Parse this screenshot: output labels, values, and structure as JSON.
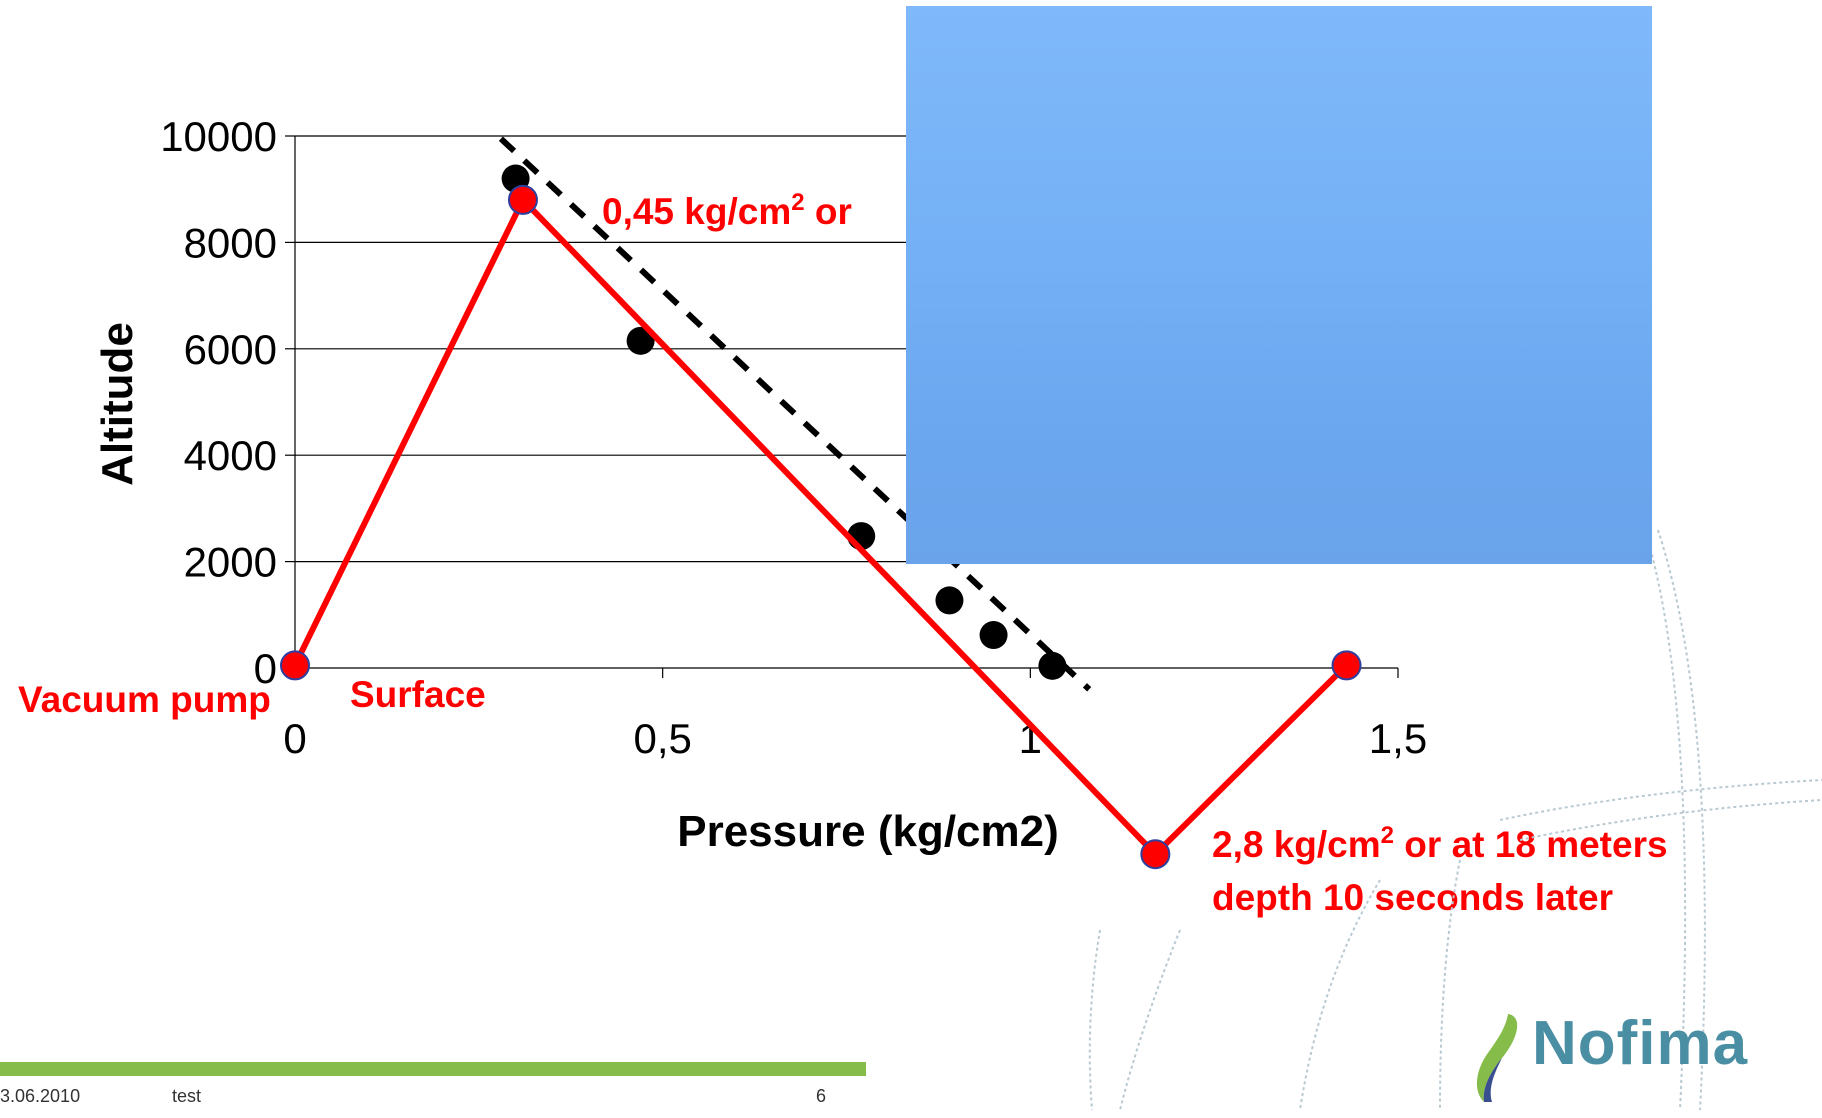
{
  "chart_data": {
    "type": "line",
    "xlabel": "Pressure (kg/cm2)",
    "ylabel": "Altitude",
    "xlim": [
      0,
      1.5
    ],
    "ylim": [
      0,
      10000
    ],
    "x_ticks": [
      "0",
      "0,5",
      "1",
      "1,5"
    ],
    "y_ticks": [
      "0",
      "2000",
      "4000",
      "6000",
      "8000",
      "10000"
    ],
    "x_tick_values": [
      0,
      0.5,
      1,
      1.5
    ],
    "y_tick_values": [
      0,
      2000,
      4000,
      6000,
      8000,
      10000
    ],
    "grid": "horizontal",
    "series": [
      {
        "type": "scatter",
        "color": "#000000",
        "points": [
          {
            "x": 0.3,
            "y": 9200
          },
          {
            "x": 0.47,
            "y": 6150
          },
          {
            "x": 0.77,
            "y": 2480
          },
          {
            "x": 0.89,
            "y": 1270
          },
          {
            "x": 0.95,
            "y": 620
          },
          {
            "x": 1.03,
            "y": 40
          }
        ]
      },
      {
        "type": "trendline",
        "style": "dashed",
        "color": "#000000",
        "points": [
          {
            "x": 0.28,
            "y": 9950
          },
          {
            "x": 1.08,
            "y": -400
          }
        ]
      },
      {
        "type": "line",
        "color": "#ff0000",
        "marker_fill": "#ff0000",
        "marker_edge": "#2f3f9f",
        "points": [
          {
            "x": 0.0,
            "y": 50
          },
          {
            "x": 0.31,
            "y": 8800
          },
          {
            "x": 1.17,
            "y": -3500
          },
          {
            "x": 1.43,
            "y": 50
          }
        ]
      }
    ],
    "annotations": {
      "top_point": {
        "line1": "0,45 kg/cm",
        "sup1": "2",
        "line1_end": " or"
      },
      "bottom_point": {
        "line1": "2,8 kg/cm",
        "sup1": "2",
        "line1_end": " or at 18 meters",
        "line2": "depth 10 seconds later"
      },
      "left_label": "Vacuum pump",
      "surface_label": "Surface"
    }
  },
  "footer": {
    "date": "3.06.2010",
    "text": "test",
    "page": "6"
  },
  "logo": {
    "text": "Nofima"
  }
}
